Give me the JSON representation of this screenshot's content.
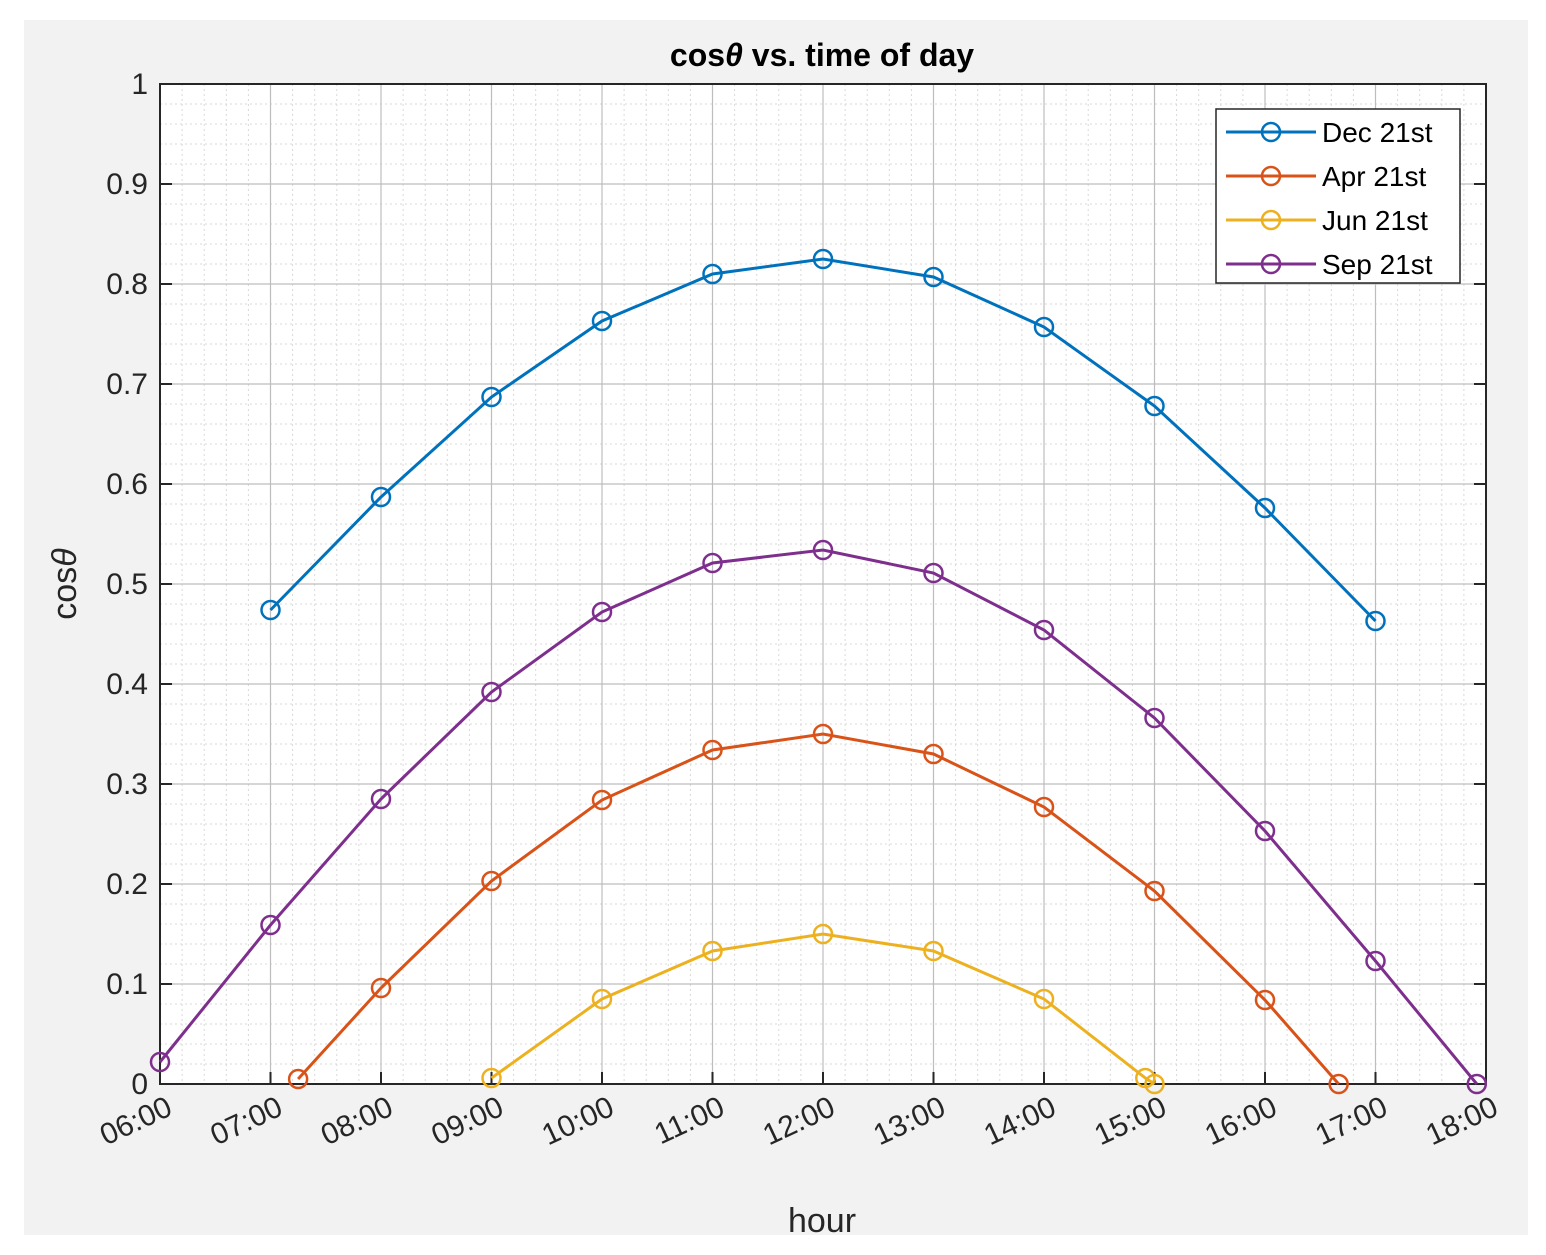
{
  "chart_data": {
    "type": "line",
    "title_prefix": "cos",
    "title_theta": "θ",
    "title_suffix": " vs. time of day",
    "xlabel": "hour",
    "ylabel_prefix": "cos",
    "ylabel_theta": "θ",
    "xlim": [
      "06:00",
      "18:00"
    ],
    "ylim": [
      0,
      1
    ],
    "x_ticks": [
      "06:00",
      "07:00",
      "08:00",
      "09:00",
      "10:00",
      "11:00",
      "12:00",
      "13:00",
      "14:00",
      "15:00",
      "16:00",
      "17:00",
      "18:00"
    ],
    "y_ticks": [
      "0",
      "0.1",
      "0.2",
      "0.3",
      "0.4",
      "0.5",
      "0.6",
      "0.7",
      "0.8",
      "0.9",
      "1"
    ],
    "grid": true,
    "minor_grid": true,
    "legend_position": "top-right",
    "series": [
      {
        "name": "Dec 21st",
        "color": "#0072bd",
        "points": [
          [
            "07:00",
            0.474
          ],
          [
            "08:00",
            0.587
          ],
          [
            "09:00",
            0.687
          ],
          [
            "10:00",
            0.763
          ],
          [
            "11:00",
            0.81
          ],
          [
            "12:00",
            0.825
          ],
          [
            "13:00",
            0.807
          ],
          [
            "14:00",
            0.757
          ],
          [
            "15:00",
            0.678
          ],
          [
            "16:00",
            0.576
          ],
          [
            "17:00",
            0.463
          ]
        ]
      },
      {
        "name": "Apr 21st",
        "color": "#d95319",
        "points": [
          [
            "07:15",
            0.005
          ],
          [
            "08:00",
            0.096
          ],
          [
            "09:00",
            0.203
          ],
          [
            "10:00",
            0.284
          ],
          [
            "11:00",
            0.334
          ],
          [
            "12:00",
            0.35
          ],
          [
            "13:00",
            0.33
          ],
          [
            "14:00",
            0.277
          ],
          [
            "15:00",
            0.193
          ],
          [
            "16:00",
            0.084
          ],
          [
            "16:40",
            0.0
          ]
        ]
      },
      {
        "name": "Jun 21st",
        "color": "#edb120",
        "points": [
          [
            "09:00",
            0.006
          ],
          [
            "10:00",
            0.085
          ],
          [
            "11:00",
            0.133
          ],
          [
            "12:00",
            0.15
          ],
          [
            "13:00",
            0.133
          ],
          [
            "14:00",
            0.085
          ],
          [
            "14:55",
            0.006
          ],
          [
            "15:00",
            0.0
          ]
        ]
      },
      {
        "name": "Sep 21st",
        "color": "#7e2f8e",
        "points": [
          [
            "06:00",
            0.022
          ],
          [
            "07:00",
            0.159
          ],
          [
            "08:00",
            0.285
          ],
          [
            "09:00",
            0.392
          ],
          [
            "10:00",
            0.472
          ],
          [
            "11:00",
            0.521
          ],
          [
            "12:00",
            0.534
          ],
          [
            "13:00",
            0.511
          ],
          [
            "14:00",
            0.454
          ],
          [
            "15:00",
            0.366
          ],
          [
            "16:00",
            0.253
          ],
          [
            "17:00",
            0.123
          ],
          [
            "17:55",
            0.0
          ]
        ]
      }
    ]
  }
}
